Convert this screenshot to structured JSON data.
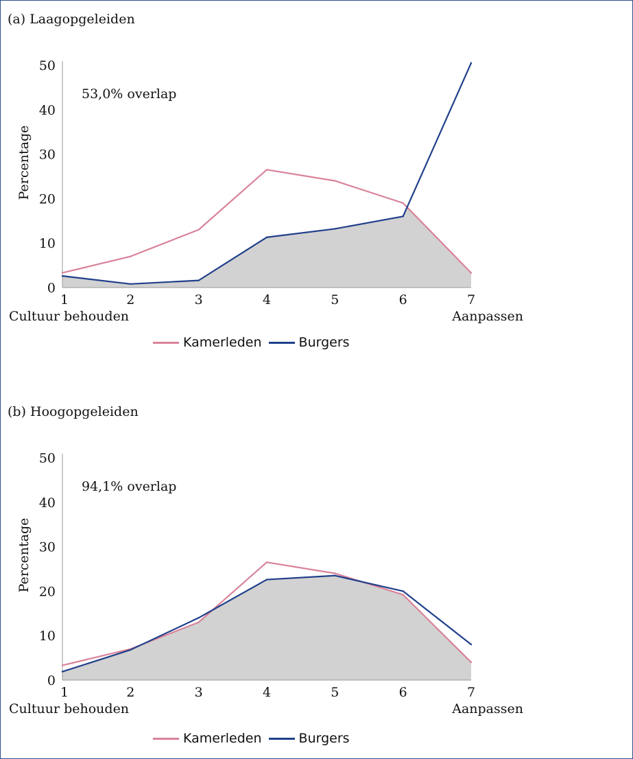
{
  "colors": {
    "kamerleden": "#d98299",
    "burgers": "#1f3f8a",
    "overlap_fill": "#d2d2d2",
    "axis": "#999999"
  },
  "chart_data": [
    {
      "type": "line",
      "title": "(a) Laagopgeleiden",
      "annotation": "53,0% overlap",
      "ylabel": "Percentage",
      "x": [
        1,
        2,
        3,
        4,
        5,
        6,
        7
      ],
      "x_tick_labels": [
        "1",
        "2",
        "3",
        "4",
        "5",
        "6",
        "7"
      ],
      "x_end_labels": {
        "left": "Cultuur behouden",
        "right": "Aanpassen"
      },
      "y_ticks": [
        "0",
        "10",
        "20",
        "30",
        "40",
        "50"
      ],
      "ylim": [
        0,
        50
      ],
      "series": [
        {
          "name": "Kamerleden",
          "values": [
            3.3,
            7.0,
            13.0,
            26.5,
            24.0,
            19.0,
            3.3
          ]
        },
        {
          "name": "Burgers",
          "values": [
            2.6,
            0.8,
            1.6,
            11.3,
            13.2,
            16.0,
            50.5
          ]
        }
      ],
      "shaded": "overlap (minimum of both series)",
      "legend": "bottom-center"
    },
    {
      "type": "line",
      "title": "(b) Hoogopgeleiden",
      "annotation": "94,1% overlap",
      "ylabel": "Percentage",
      "x": [
        1,
        2,
        3,
        4,
        5,
        6,
        7
      ],
      "x_tick_labels": [
        "1",
        "2",
        "3",
        "4",
        "5",
        "6",
        "7"
      ],
      "x_end_labels": {
        "left": "Cultuur behouden",
        "right": "Aanpassen"
      },
      "y_ticks": [
        "0",
        "10",
        "20",
        "30",
        "40",
        "50"
      ],
      "ylim": [
        0,
        50
      ],
      "series": [
        {
          "name": "Kamerleden",
          "values": [
            3.3,
            7.0,
            13.0,
            26.5,
            24.0,
            19.2,
            4.0
          ]
        },
        {
          "name": "Burgers",
          "values": [
            1.9,
            6.8,
            14.0,
            22.6,
            23.5,
            20.0,
            8.0
          ]
        }
      ],
      "shaded": "overlap (minimum of both series)",
      "legend": "bottom-center"
    }
  ]
}
